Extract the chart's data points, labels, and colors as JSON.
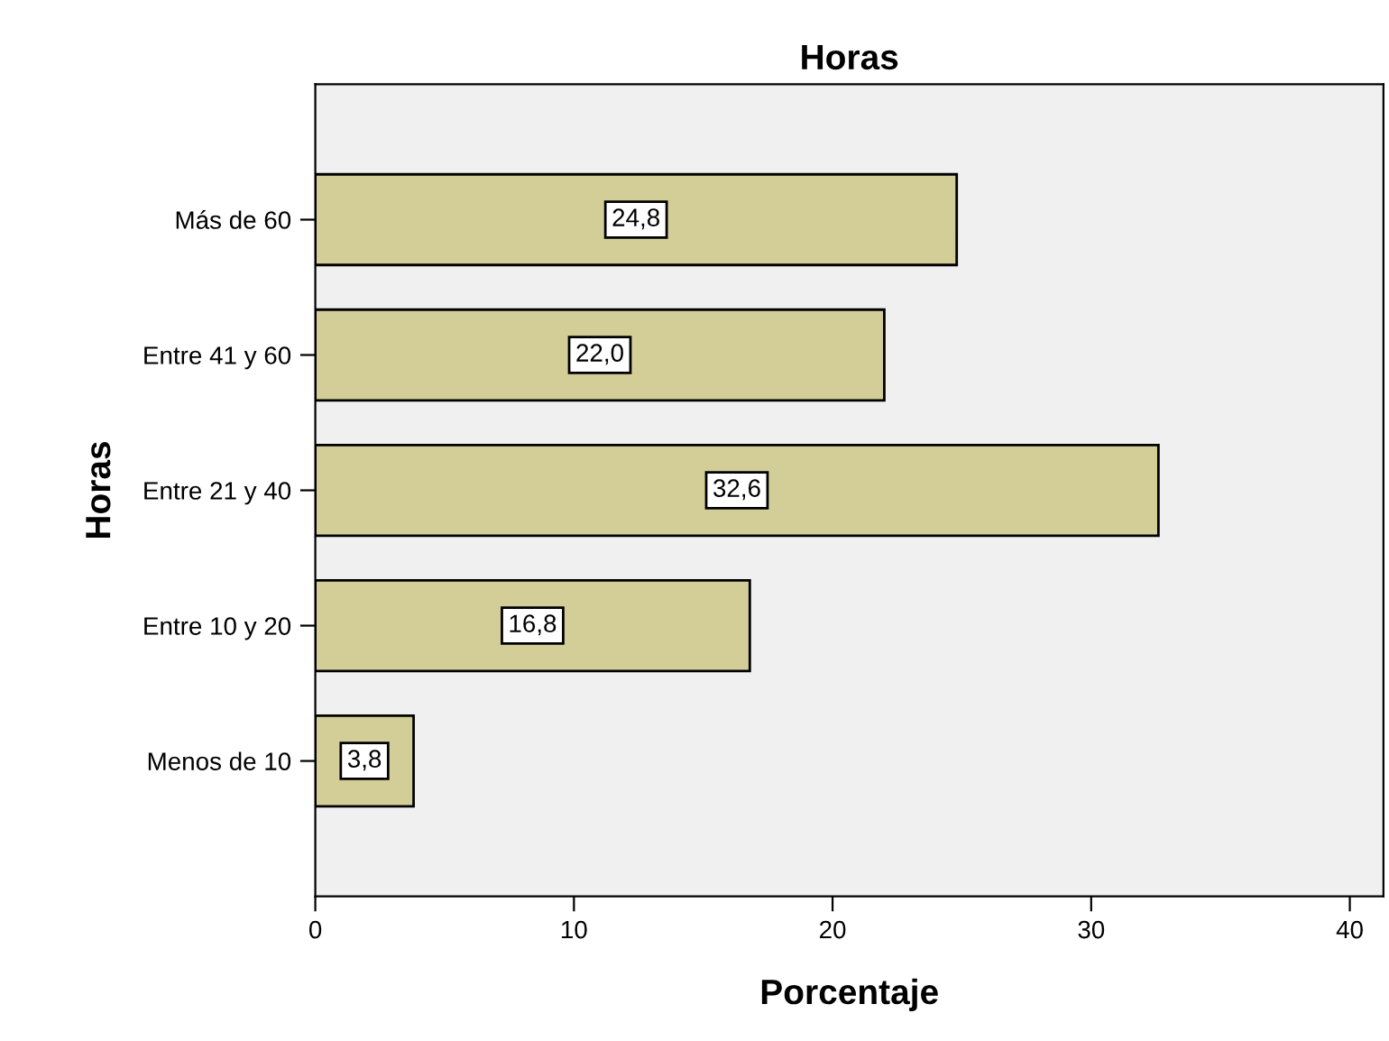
{
  "chart_data": {
    "type": "bar",
    "title": "Horas",
    "xlabel": "Porcentaje",
    "ylabel": "Horas",
    "orientation": "horizontal",
    "categories": [
      "Más de 60",
      "Entre 41 y 60",
      "Entre 21 y 40",
      "Entre 10 y 20",
      "Menos de 10"
    ],
    "values": [
      24.8,
      22.0,
      32.6,
      16.8,
      3.8
    ],
    "value_labels": [
      "24,8",
      "22,0",
      "32,6",
      "16,8",
      "3,8"
    ],
    "color": "#d3ce98",
    "xlim": [
      0,
      41.3
    ],
    "xticks": [
      0,
      10,
      20,
      30,
      40
    ],
    "grid": false,
    "legend": false
  }
}
